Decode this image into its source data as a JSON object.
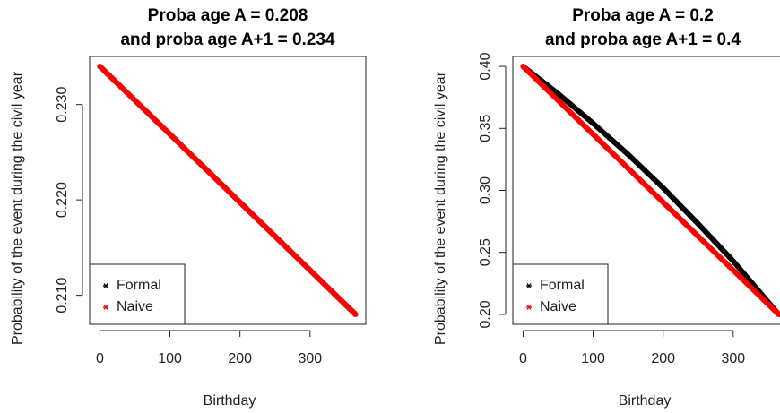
{
  "chart_data": [
    {
      "type": "line",
      "title": [
        "Proba age A =  0.208",
        "and proba age A+1 = 0.234"
      ],
      "xlabel": "Birthday",
      "ylabel": "Probability of the event during the civil year",
      "x": [
        0,
        50,
        100,
        150,
        200,
        250,
        300,
        365
      ],
      "series": [
        {
          "name": "Formal",
          "color": "#000000",
          "values": [
            0.234,
            0.23044,
            0.22688,
            0.22332,
            0.21975,
            0.21619,
            0.21263,
            0.208
          ]
        },
        {
          "name": "Naive",
          "color": "#ff0000",
          "values": [
            0.234,
            0.23044,
            0.22688,
            0.22332,
            0.21975,
            0.21619,
            0.21263,
            0.208
          ]
        }
      ],
      "xlim": [
        -14.6,
        379.6
      ],
      "xticks": [
        0,
        100,
        200,
        300
      ],
      "ylim": [
        0.20696,
        0.23504
      ],
      "yticks": [
        {
          "value": 0.21,
          "label": "0.210"
        },
        {
          "value": 0.22,
          "label": "0.220"
        },
        {
          "value": 0.23,
          "label": "0.230"
        }
      ],
      "legend": "bottomleft"
    },
    {
      "type": "line",
      "title": [
        "Proba age A =  0.2",
        "and proba age A+1 = 0.4"
      ],
      "xlabel": "Birthday",
      "ylabel": "Probability of the event during the civil year",
      "x": [
        0,
        50,
        100,
        150,
        200,
        250,
        300,
        365
      ],
      "series": [
        {
          "name": "Formal",
          "color": "#000000",
          "values": [
            0.4,
            0.378,
            0.354,
            0.329,
            0.302,
            0.273,
            0.243,
            0.2
          ]
        },
        {
          "name": "Naive",
          "color": "#ff0000",
          "values": [
            0.4,
            0.3726,
            0.3452,
            0.3178,
            0.2904,
            0.263,
            0.2356,
            0.2
          ]
        }
      ],
      "xlim": [
        -14.6,
        379.6
      ],
      "xticks": [
        0,
        100,
        200,
        300
      ],
      "ylim": [
        0.192,
        0.408
      ],
      "yticks": [
        {
          "value": 0.2,
          "label": "0.20"
        },
        {
          "value": 0.25,
          "label": "0.25"
        },
        {
          "value": 0.3,
          "label": "0.30"
        },
        {
          "value": 0.35,
          "label": "0.35"
        },
        {
          "value": 0.4,
          "label": "0.40"
        }
      ],
      "legend": "bottomleft"
    }
  ]
}
